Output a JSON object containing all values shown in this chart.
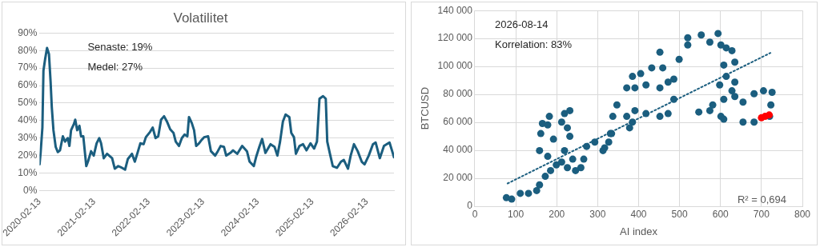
{
  "chart_data": [
    {
      "type": "line",
      "title": "Volatilitet",
      "x": [
        "2020-02-13",
        "2020-02-20",
        "2020-03-03",
        "2020-03-10",
        "2020-03-21",
        "2020-04-03",
        "2020-04-16",
        "2020-04-27",
        "2020-05-05",
        "2020-05-16",
        "2020-05-31",
        "2020-06-14",
        "2020-06-29",
        "2020-07-18",
        "2020-08-02",
        "2020-08-20",
        "2020-08-31",
        "2020-09-11",
        "2020-09-30",
        "2020-10-09",
        "2020-10-22",
        "2020-11-06",
        "2020-11-17",
        "2020-12-02",
        "2020-12-22",
        "2021-01-04",
        "2021-01-23",
        "2021-02-10",
        "2021-03-01",
        "2021-03-19",
        "2021-03-31",
        "2021-04-18",
        "2021-05-10",
        "2021-06-13",
        "2021-07-01",
        "2021-07-24",
        "2021-08-18",
        "2021-09-08",
        "2021-09-26",
        "2021-10-24",
        "2021-11-12",
        "2021-11-30",
        "2021-12-19",
        "2022-01-10",
        "2022-01-25",
        "2022-02-22",
        "2022-03-12",
        "2022-03-31",
        "2022-04-18",
        "2022-05-07",
        "2022-05-27",
        "2022-06-15",
        "2022-07-07",
        "2022-07-29",
        "2022-08-13",
        "2022-09-04",
        "2022-09-23",
        "2022-10-11",
        "2022-10-30",
        "2022-11-10",
        "2022-11-29",
        "2022-12-14",
        "2022-12-28",
        "2023-01-16",
        "2023-02-03",
        "2023-02-19",
        "2023-03-18",
        "2023-04-06",
        "2023-05-04",
        "2023-05-22",
        "2023-06-10",
        "2023-07-02",
        "2023-07-17",
        "2023-08-14",
        "2023-09-01",
        "2023-09-29",
        "2023-11-01",
        "2023-12-03",
        "2023-12-21",
        "2024-01-18",
        "2024-02-02",
        "2024-02-24",
        "2024-03-14",
        "2024-04-05",
        "2024-05-09",
        "2024-06-05",
        "2024-06-24",
        "2024-07-12",
        "2024-07-31",
        "2024-08-18",
        "2024-09-12",
        "2024-09-25",
        "2024-10-13",
        "2024-10-26",
        "2024-11-19",
        "2024-12-13",
        "2025-01-05",
        "2025-02-01",
        "2025-02-25",
        "2025-03-16",
        "2025-04-02",
        "2025-04-26",
        "2025-05-14",
        "2025-05-24",
        "2025-06-11",
        "2025-06-30",
        "2025-07-28",
        "2025-08-24",
        "2025-09-12",
        "2025-10-10",
        "2025-10-28",
        "2025-11-19",
        "2025-12-14",
        "2026-01-10",
        "2026-01-29",
        "2026-02-26",
        "2026-03-26",
        "2026-04-13",
        "2026-05-11",
        "2026-06-08",
        "2026-07-15",
        "2026-08-02",
        "2026-08-14"
      ],
      "series": [
        {
          "color": "#1b5e7f",
          "values": [
            15,
            21.5,
            36,
            68.5,
            75,
            81.5,
            78,
            62,
            47.5,
            34.5,
            25,
            22,
            23,
            31,
            28,
            30,
            25.5,
            34.5,
            38,
            40.5,
            34.5,
            37,
            31,
            31,
            14,
            17,
            22.5,
            20,
            27,
            30,
            27,
            18.5,
            21,
            18.5,
            12.5,
            14,
            13,
            12,
            18,
            21,
            16.5,
            21.5,
            27,
            26.5,
            30.5,
            33.5,
            36,
            30,
            31,
            40.5,
            42.5,
            39.5,
            35,
            33,
            28,
            25.5,
            30,
            32,
            31,
            42,
            38.5,
            34.5,
            25.5,
            27,
            29,
            30.5,
            31,
            22.5,
            20,
            22.5,
            25.5,
            25,
            20,
            21.5,
            23,
            21,
            25.5,
            22.5,
            16.5,
            14,
            19,
            25,
            29.5,
            21.5,
            26.5,
            25,
            20,
            28,
            39.5,
            43.5,
            42,
            33,
            30.5,
            21,
            25.5,
            26.5,
            23,
            27,
            24,
            28,
            52.5,
            54,
            52.5,
            28,
            21,
            14,
            13,
            16.5,
            17.5,
            12.5,
            20,
            26.5,
            22.5,
            16.5,
            15,
            20,
            26.5,
            27.5,
            18.5,
            25.5,
            27.5,
            22.5,
            19
          ]
        }
      ],
      "xlim": [
        "2020-02-13",
        "2026-08-14"
      ],
      "xticks": [
        "2020-02-13",
        "2021-02-13",
        "2022-02-13",
        "2023-02-13",
        "2024-02-13",
        "2025-02-13",
        "2026-02-13"
      ],
      "ylim": [
        0,
        90
      ],
      "yticks": [
        {
          "value": 0,
          "label": "0%"
        },
        {
          "value": 10,
          "label": "10%"
        },
        {
          "value": 20,
          "label": "20%"
        },
        {
          "value": 30,
          "label": "30%"
        },
        {
          "value": 40,
          "label": "40%"
        },
        {
          "value": 50,
          "label": "50%"
        },
        {
          "value": 60,
          "label": "60%"
        },
        {
          "value": 70,
          "label": "70%"
        },
        {
          "value": 80,
          "label": "80%"
        },
        {
          "value": 90,
          "label": "90%"
        }
      ],
      "grid": "y",
      "legend": false,
      "marker": "none",
      "line_style": "solid",
      "annotations": [
        "Senaste: 19%",
        "Medel: 27%"
      ]
    },
    {
      "type": "scatter",
      "xlabel": "AI index",
      "ylabel": "BTCUSD",
      "series": [
        {
          "color": "#1b5e7f",
          "x": [
            77,
            90,
            111,
            131,
            151,
            158,
            172,
            185,
            199,
            178,
            158,
            161,
            165,
            178,
            182,
            192,
            212,
            219,
            232,
            226,
            232,
            219,
            212,
            226,
            246,
            259,
            239,
            266,
            273,
            293,
            313,
            327,
            334,
            317,
            331,
            337,
            347,
            371,
            385,
            378,
            391,
            418,
            452,
            472,
            486,
            472,
            459,
            452,
            432,
            405,
            385,
            371,
            391,
            418,
            452,
            486,
            499,
            520,
            520,
            553,
            574,
            594,
            601,
            614,
            628,
            635,
            608,
            614,
            598,
            635,
            628,
            547,
            581,
            608,
            635,
            655,
            682,
            705,
            726,
            723,
            720,
            682,
            655,
            601,
            608,
            574
          ],
          "values": [
            6100,
            5100,
            9200,
            9200,
            11200,
            15300,
            21400,
            25500,
            29600,
            35700,
            39800,
            52000,
            59200,
            58200,
            64300,
            48000,
            60200,
            66300,
            68400,
            56100,
            50000,
            39800,
            31600,
            27600,
            25500,
            27600,
            33700,
            33700,
            42800,
            45900,
            39800,
            45900,
            52000,
            41800,
            52000,
            64300,
            72500,
            64300,
            60200,
            56100,
            68400,
            66300,
            64300,
            66300,
            76500,
            88800,
            99000,
            110200,
            99000,
            94900,
            92900,
            84700,
            84700,
            86800,
            84700,
            90900,
            105100,
            115400,
            120500,
            122500,
            117400,
            123600,
            115400,
            113300,
            111300,
            103100,
            101000,
            92900,
            86800,
            88800,
            82600,
            67400,
            72500,
            76500,
            78500,
            74500,
            80500,
            82600,
            81500,
            72500,
            64300,
            60200,
            60200,
            64300,
            62300,
            68400
          ]
        },
        {
          "color": "#ff0000",
          "x": [
            700,
            709,
            719
          ],
          "values": [
            63300,
            64300,
            65300
          ]
        },
        {
          "type": "line",
          "color": "#1b5e7f",
          "line_style": "dotted",
          "marker": "none",
          "x": [
            80,
            722
          ],
          "values": [
            16300,
            109700
          ]
        }
      ],
      "xlim": [
        0,
        800
      ],
      "xticks": [
        0,
        100,
        200,
        300,
        400,
        500,
        600,
        700,
        800
      ],
      "ylim": [
        0,
        140000
      ],
      "yticks": [
        0,
        {
          "value": 20000,
          "label": "20 000"
        },
        {
          "value": 40000,
          "label": "40 000"
        },
        {
          "value": 60000,
          "label": "60 000"
        },
        {
          "value": 80000,
          "label": "80 000"
        },
        {
          "value": 100000,
          "label": "100 000"
        },
        {
          "value": 120000,
          "label": "120 000"
        },
        {
          "value": 140000,
          "label": "140 000"
        }
      ],
      "grid": true,
      "legend": false,
      "marker": "circle",
      "annotations": [
        "2026-08-14",
        "Korrelation: 83%",
        "R² = 0,694"
      ]
    }
  ]
}
